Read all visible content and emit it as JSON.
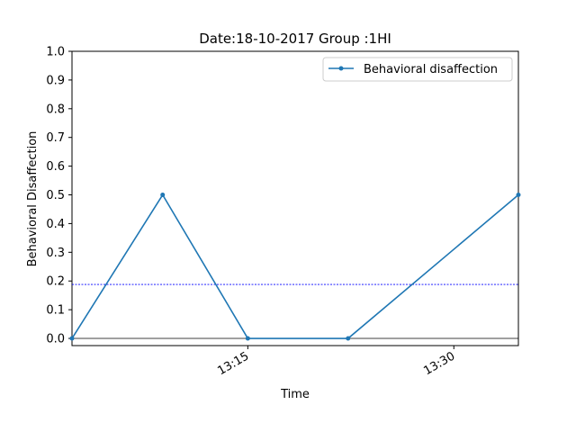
{
  "chart_data": {
    "type": "line",
    "title": "Date:18-10-2017 Group :1HI",
    "xlabel": "Time",
    "ylabel": "Behavioral Disaffection",
    "x_ticks": [
      "13:15",
      "13:30"
    ],
    "y_ticks": [
      "0.0",
      "0.1",
      "0.2",
      "0.3",
      "0.4",
      "0.5",
      "0.6",
      "0.7",
      "0.8",
      "0.9",
      "1.0"
    ],
    "ylim": [
      -0.025,
      1.0
    ],
    "xlim_minutes": [
      782.2,
      814.7
    ],
    "series": [
      {
        "name": "Behavioral disaffection",
        "color": "#1f77b4",
        "x_minutes": [
          782.2,
          788.8,
          795.0,
          802.3,
          814.7
        ],
        "values": [
          0.0,
          0.5,
          0.0,
          0.0,
          0.5
        ]
      }
    ],
    "reference_lines": [
      {
        "y": 0.188,
        "color": "#0000ff",
        "style": "dashed"
      },
      {
        "y": 0.0,
        "color": "#000000",
        "style": "solid"
      }
    ],
    "legend_position": "top-right",
    "grid": false
  }
}
